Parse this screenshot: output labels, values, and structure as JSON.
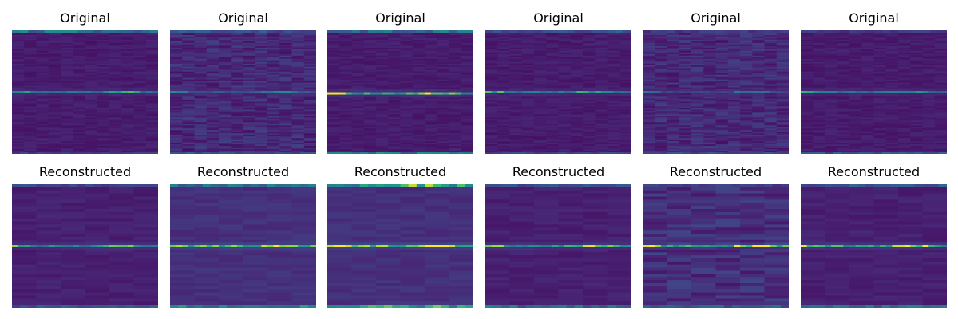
{
  "chart_data": {
    "type": "heatmap",
    "rows": [
      {
        "name": "original",
        "panels": [
          {
            "title": "Original",
            "style": "noisy-dark",
            "center_line": 0.5,
            "center_strength": 0.55,
            "edge_top": 0.6,
            "edge_bottom": 0.2,
            "variant": 0
          },
          {
            "title": "Original",
            "style": "noisy-rough",
            "center_line": 0.5,
            "center_strength": 0.35,
            "edge_top": 0.35,
            "edge_bottom": 0.35,
            "variant": 1
          },
          {
            "title": "Original",
            "style": "noisy-dark",
            "center_line": 0.51,
            "center_strength": 0.75,
            "edge_top": 0.55,
            "edge_bottom": 0.6,
            "variant": 2
          },
          {
            "title": "Original",
            "style": "noisy-dark",
            "center_line": 0.5,
            "center_strength": 0.55,
            "edge_top": 0.4,
            "edge_bottom": 0.3,
            "variant": 3
          },
          {
            "title": "Original",
            "style": "noisy-rough",
            "center_line": 0.5,
            "center_strength": 0.25,
            "edge_top": 0.2,
            "edge_bottom": 0.3,
            "variant": 4
          },
          {
            "title": "Original",
            "style": "noisy-dark",
            "center_line": 0.5,
            "center_strength": 0.5,
            "edge_top": 0.2,
            "edge_bottom": 0.35,
            "variant": 5
          }
        ]
      },
      {
        "name": "reconstructed",
        "panels": [
          {
            "title": "Reconstructed",
            "style": "smooth",
            "center_line": 0.5,
            "center_strength": 0.6,
            "edge_top": 0.3,
            "edge_bottom": 0.35,
            "variant": 6
          },
          {
            "title": "Reconstructed",
            "style": "smooth-bright",
            "center_line": 0.5,
            "center_strength": 0.8,
            "edge_top": 0.45,
            "edge_bottom": 0.55,
            "variant": 7
          },
          {
            "title": "Reconstructed",
            "style": "smooth-bright",
            "center_line": 0.5,
            "center_strength": 0.85,
            "edge_top": 0.8,
            "edge_bottom": 0.75,
            "variant": 8
          },
          {
            "title": "Reconstructed",
            "style": "smooth",
            "center_line": 0.5,
            "center_strength": 0.7,
            "edge_top": 0.3,
            "edge_bottom": 0.5,
            "variant": 9
          },
          {
            "title": "Reconstructed",
            "style": "smooth-rough",
            "center_line": 0.5,
            "center_strength": 0.8,
            "edge_top": 0.2,
            "edge_bottom": 0.4,
            "variant": 10
          },
          {
            "title": "Reconstructed",
            "style": "smooth",
            "center_line": 0.5,
            "center_strength": 0.75,
            "edge_top": 0.35,
            "edge_bottom": 0.5,
            "variant": 11
          }
        ]
      }
    ],
    "colormap": "viridis",
    "colors": {
      "low": "#440154",
      "mid": "#21918c",
      "high": "#fde725"
    }
  }
}
